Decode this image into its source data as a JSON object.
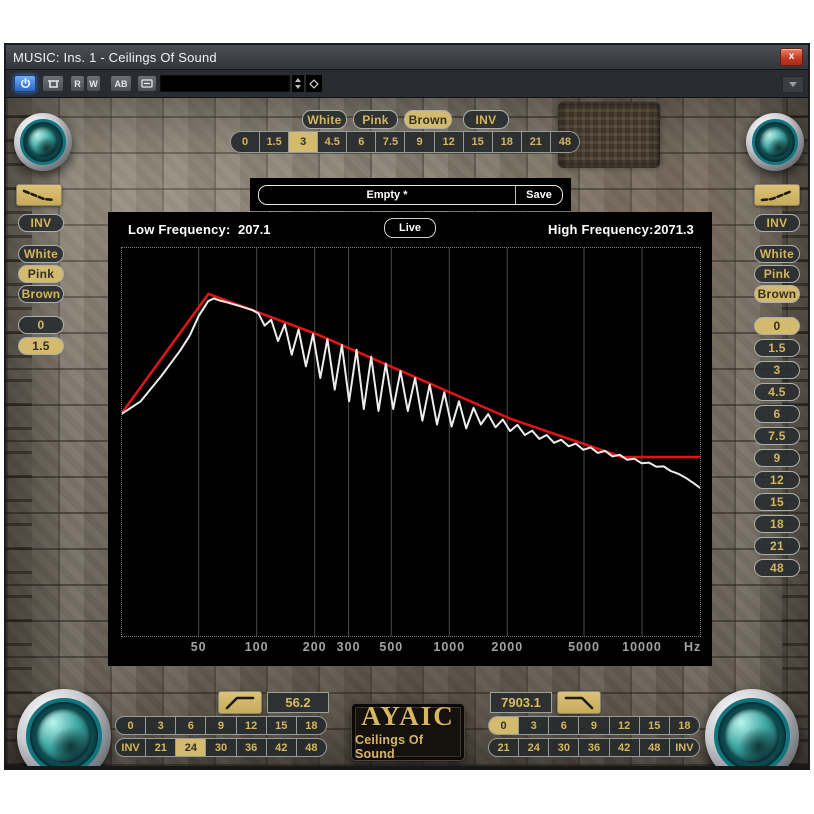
{
  "window": {
    "title": "MUSIC: Ins. 1 - Ceilings Of Sound",
    "close_label": "x"
  },
  "toolbar": {
    "read_label": "R",
    "write_label": "W",
    "compare_label": "AB",
    "preset_value": ""
  },
  "top_controls": {
    "noise": [
      {
        "label": "White",
        "active": false
      },
      {
        "label": "Pink",
        "active": false
      },
      {
        "label": "Brown",
        "active": true
      }
    ],
    "inv_label": "INV",
    "slopes": [
      "0",
      "1.5",
      "3",
      "4.5",
      "6",
      "7.5",
      "9",
      "12",
      "15",
      "18",
      "21",
      "48"
    ],
    "active_slope": "3"
  },
  "preset_bar": {
    "name": "Empty *",
    "save_label": "Save"
  },
  "display": {
    "low_freq_label": "Low Frequency:",
    "low_freq_value": "207.1",
    "live_label": "Live",
    "high_freq_label": "High Frequency:",
    "high_freq_value": "2071.3"
  },
  "left_panel": {
    "inv_label": "INV",
    "noise": [
      {
        "label": "White",
        "active": false
      },
      {
        "label": "Pink",
        "active": true
      },
      {
        "label": "Brown",
        "active": false
      }
    ],
    "values": [
      "0",
      "1.5"
    ],
    "active_value": "1.5"
  },
  "right_panel": {
    "inv_label": "INV",
    "noise": [
      {
        "label": "White",
        "active": false
      },
      {
        "label": "Pink",
        "active": false
      },
      {
        "label": "Brown",
        "active": true
      }
    ],
    "values": [
      "0",
      "1.5",
      "3",
      "4.5",
      "6",
      "7.5",
      "9",
      "12",
      "15",
      "18",
      "21",
      "48"
    ],
    "active_value": "0"
  },
  "bottom_left": {
    "freq_value": "56.2",
    "row1": [
      "0",
      "3",
      "6",
      "9",
      "12",
      "15",
      "18"
    ],
    "row2": [
      "INV",
      "21",
      "24",
      "30",
      "36",
      "42",
      "48"
    ],
    "active_value": "24"
  },
  "bottom_right": {
    "freq_value": "7903.1",
    "row1": [
      "0",
      "3",
      "6",
      "9",
      "12",
      "15",
      "18"
    ],
    "row2": [
      "21",
      "24",
      "30",
      "36",
      "42",
      "48",
      "INV"
    ],
    "active_value": "0"
  },
  "logo": {
    "brand": "AYAIC",
    "product": "Ceilings Of Sound"
  },
  "colors": {
    "accent_gold": "#d4b65f",
    "active_tan": "#d4ba6e",
    "curve_red": "#df1414",
    "curve_white": "#ededed"
  },
  "chart_data": {
    "type": "line",
    "title": "",
    "x_axis": {
      "scale": "log",
      "min_hz": 20,
      "max_hz": 20000,
      "unit_label": "Hz",
      "tick_values": [
        50,
        100,
        200,
        300,
        500,
        1000,
        2000,
        5000,
        10000
      ],
      "tick_labels": [
        "50",
        "100",
        "200",
        "300",
        "500",
        "1000",
        "2000",
        "5000",
        "10000"
      ]
    },
    "y_axis": {
      "labels_shown": false,
      "range": [
        0,
        100
      ]
    },
    "grid": "vertical-only",
    "legend": "none",
    "series": [
      {
        "name": "ceiling-envelope",
        "color": "#df1414",
        "width": 2.6,
        "points": [
          [
            20,
            57.5
          ],
          [
            56.2,
            88.2
          ],
          [
            207.1,
            77.7
          ],
          [
            2071.3,
            56.0
          ],
          [
            7903.1,
            46.1
          ],
          [
            20000,
            46.1
          ]
        ]
      },
      {
        "name": "spectrum",
        "color": "#ededed",
        "width": 2,
        "points": [
          [
            20,
            57.3
          ],
          [
            25,
            60.5
          ],
          [
            32,
            67
          ],
          [
            40,
            73.5
          ],
          [
            45,
            77.5
          ],
          [
            50,
            82.5
          ],
          [
            56,
            86.3
          ],
          [
            60,
            87
          ],
          [
            64,
            86.5
          ],
          [
            70,
            86
          ],
          [
            76,
            85.5
          ],
          [
            82,
            85
          ],
          [
            88,
            84.5
          ],
          [
            95,
            84
          ],
          [
            102,
            83.2
          ],
          [
            110,
            80
          ],
          [
            119,
            81.5
          ],
          [
            129,
            76
          ],
          [
            140,
            80.3
          ],
          [
            152,
            72.5
          ],
          [
            165,
            79
          ],
          [
            180,
            69.5
          ],
          [
            196,
            77.8
          ],
          [
            214,
            66.5
          ],
          [
            233,
            76.5
          ],
          [
            254,
            63.5
          ],
          [
            277,
            75
          ],
          [
            302,
            60.5
          ],
          [
            330,
            73.8
          ],
          [
            360,
            58.5
          ],
          [
            393,
            72
          ],
          [
            429,
            58
          ],
          [
            468,
            70.2
          ],
          [
            511,
            58.5
          ],
          [
            558,
            68.3
          ],
          [
            609,
            58
          ],
          [
            664,
            66.5
          ],
          [
            725,
            55.5
          ],
          [
            791,
            64.8
          ],
          [
            863,
            54.5
          ],
          [
            942,
            62.8
          ],
          [
            1028,
            54
          ],
          [
            1122,
            60.5
          ],
          [
            1224,
            53.5
          ],
          [
            1336,
            58.8
          ],
          [
            1458,
            54.5
          ],
          [
            1591,
            57.2
          ],
          [
            1736,
            53.8
          ],
          [
            1895,
            55.8
          ],
          [
            2068,
            52.8
          ],
          [
            2257,
            54.4
          ],
          [
            2463,
            51.8
          ],
          [
            2688,
            52.9
          ],
          [
            2933,
            50.8
          ],
          [
            3201,
            51.8
          ],
          [
            3493,
            49.8
          ],
          [
            3812,
            50.6
          ],
          [
            4160,
            48.9
          ],
          [
            4540,
            49.6
          ],
          [
            4954,
            48
          ],
          [
            5407,
            48.6
          ],
          [
            5900,
            47.2
          ],
          [
            6439,
            47.7
          ],
          [
            7027,
            46.3
          ],
          [
            7668,
            46.7
          ],
          [
            8368,
            45.4
          ],
          [
            9132,
            45.7
          ],
          [
            9965,
            44.5
          ],
          [
            10875,
            44.7
          ],
          [
            11868,
            43.6
          ],
          [
            12951,
            43.7
          ],
          [
            14133,
            42.5
          ],
          [
            15423,
            41.8
          ],
          [
            16831,
            40.8
          ],
          [
            18367,
            39.5
          ],
          [
            20000,
            38.2
          ]
        ]
      }
    ]
  }
}
